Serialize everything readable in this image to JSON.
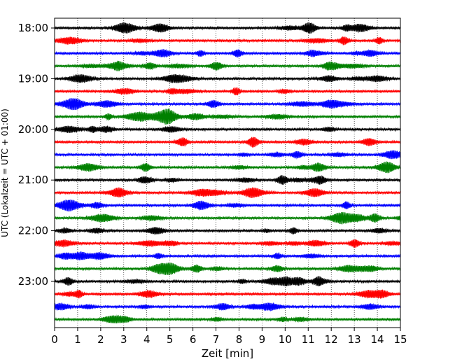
{
  "chart_data": {
    "type": "line",
    "title": "",
    "xlabel": "Zeit  [min]",
    "ylabel": "UTC (Lokalzeit = UTC + 01:00)",
    "xlim": [
      0,
      15
    ],
    "x_ticks": [
      "0",
      "1",
      "2",
      "3",
      "4",
      "5",
      "6",
      "7",
      "8",
      "9",
      "10",
      "11",
      "12",
      "13",
      "14",
      "15"
    ],
    "y_ticks": [
      "18:00",
      "19:00",
      "20:00",
      "21:00",
      "22:00",
      "23:00"
    ],
    "grid": "vertical dotted",
    "trace_interval_min": 15,
    "start_time": "18:00",
    "trace_count": 24,
    "trace_colors": [
      "#000000",
      "#ff0000",
      "#0000ff",
      "#008000"
    ]
  }
}
